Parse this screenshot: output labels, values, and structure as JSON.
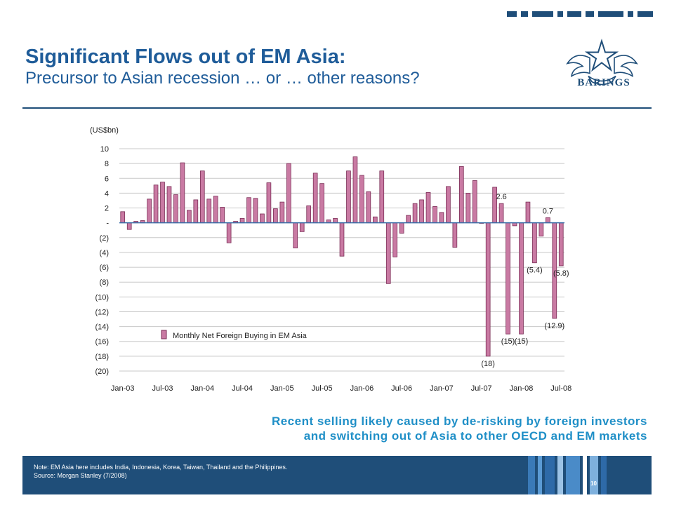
{
  "slide": {
    "title": "Significant Flows out of EM Asia:",
    "subtitle": "Precursor to Asian recession … or … other reasons?",
    "logo_text": "BARINGS",
    "caption_line1": "Recent selling likely caused by de-risking by foreign investors",
    "caption_line2": "and switching out of Asia to other OECD and EM markets",
    "note": "Note: EM Asia here includes India, Indonesia, Korea, Taiwan, Thailand and the Philippines.",
    "source": "Source: Morgan Stanley (7/2008)",
    "page_number": "10"
  },
  "colors": {
    "brand_navy": "#1f4e79",
    "title_blue": "#1f5c99",
    "caption_blue": "#1f8fc7",
    "bar_fill": "#c97aa3",
    "bar_border": "#7a2d55"
  },
  "chart_data": {
    "type": "bar",
    "unit_label": "(US$bn)",
    "series": [
      {
        "name": "Monthly Net Foreign Buying in EM Asia",
        "values": [
          1.5,
          -0.9,
          0.2,
          0.3,
          3.2,
          5.1,
          5.5,
          4.9,
          3.8,
          8.1,
          1.7,
          3.1,
          7.0,
          3.2,
          3.6,
          2.1,
          -2.7,
          0.2,
          0.6,
          3.4,
          3.3,
          1.2,
          5.4,
          1.9,
          2.8,
          8.0,
          -3.4,
          -1.2,
          2.3,
          6.7,
          5.3,
          0.4,
          0.6,
          -4.5,
          7.0,
          8.9,
          6.4,
          4.2,
          0.8,
          7.0,
          -8.2,
          -4.6,
          -1.4,
          1.0,
          2.6,
          3.1,
          4.1,
          2.2,
          1.4,
          4.9,
          -3.3,
          7.6,
          4.0,
          5.7,
          0.0,
          -18.0,
          4.8,
          2.6,
          -15.0,
          -0.4,
          -15.0,
          2.8,
          -5.4,
          -1.8,
          0.7,
          -12.9,
          -5.8
        ]
      }
    ],
    "x_tick_labels": [
      "Jan-03",
      "Jul-03",
      "Jan-04",
      "Jul-04",
      "Jan-05",
      "Jul-05",
      "Jan-06",
      "Jul-06",
      "Jan-07",
      "Jul-07",
      "Jan-08",
      "Jul-08"
    ],
    "y_tick_labels": [
      "10",
      "8",
      "6",
      "4",
      "2",
      "-",
      "(2)",
      "(4)",
      "(6)",
      "(8)",
      "(10)",
      "(12)",
      "(14)",
      "(16)",
      "(18)",
      "(20)"
    ],
    "ylim": [
      -20,
      10
    ],
    "data_labels": [
      {
        "index": 55,
        "text": "(18)"
      },
      {
        "index": 57,
        "text": "2.6"
      },
      {
        "index": 58,
        "text": "(15)"
      },
      {
        "index": 60,
        "text": "(15)"
      },
      {
        "index": 62,
        "text": "(5.4)"
      },
      {
        "index": 64,
        "text": "0.7"
      },
      {
        "index": 65,
        "text": "(12.9)"
      },
      {
        "index": 66,
        "text": "(5.8)"
      }
    ],
    "legend_position": "bottom-left",
    "grid": true
  }
}
